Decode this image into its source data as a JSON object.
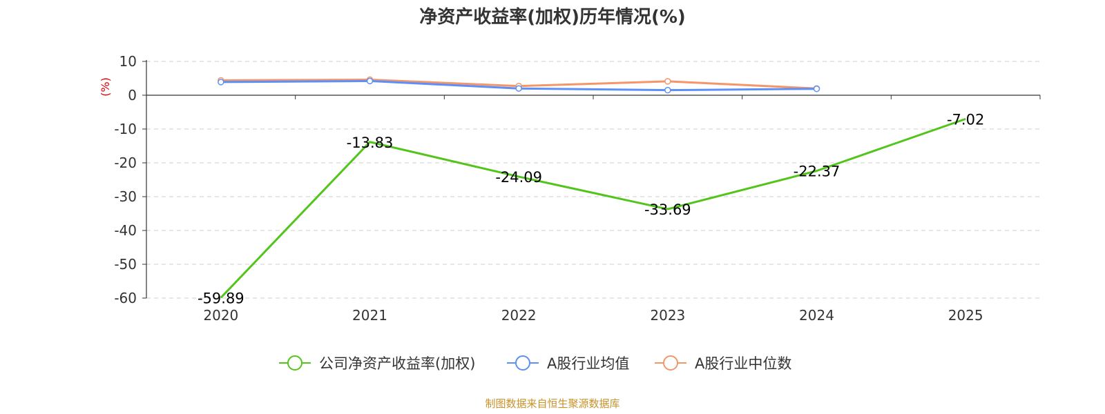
{
  "chart_data": {
    "type": "line",
    "title": "净资产收益率(加权)历年情况(%)",
    "ylabel": "(%)",
    "x": [
      "2020",
      "2021",
      "2022",
      "2023",
      "2024",
      "2025"
    ],
    "ylim": [
      -60,
      10
    ],
    "yticks": [
      10,
      0,
      -10,
      -20,
      -30,
      -40,
      -50,
      -60
    ],
    "grid": true,
    "legend_position": "bottom",
    "series": [
      {
        "name": "公司净资产收益率(加权)",
        "color": "#52c41a",
        "values": [
          -59.89,
          -13.83,
          -24.09,
          -33.69,
          -22.37,
          -7.02
        ],
        "labels": [
          "-59.89",
          "-13.83",
          "-24.09",
          "-33.69",
          "-22.37",
          "-7.02"
        ],
        "show_labels": true
      },
      {
        "name": "A股行业均值",
        "color": "#5b8ff9",
        "values": [
          3.9,
          4.2,
          2.0,
          1.5,
          1.9,
          null
        ],
        "show_labels": false
      },
      {
        "name": "A股行业中位数",
        "color": "#f4956a",
        "values": [
          4.4,
          4.6,
          2.7,
          4.1,
          2.0,
          null
        ],
        "show_labels": false
      }
    ]
  },
  "source": "制图数据来自恒生聚源数据库"
}
